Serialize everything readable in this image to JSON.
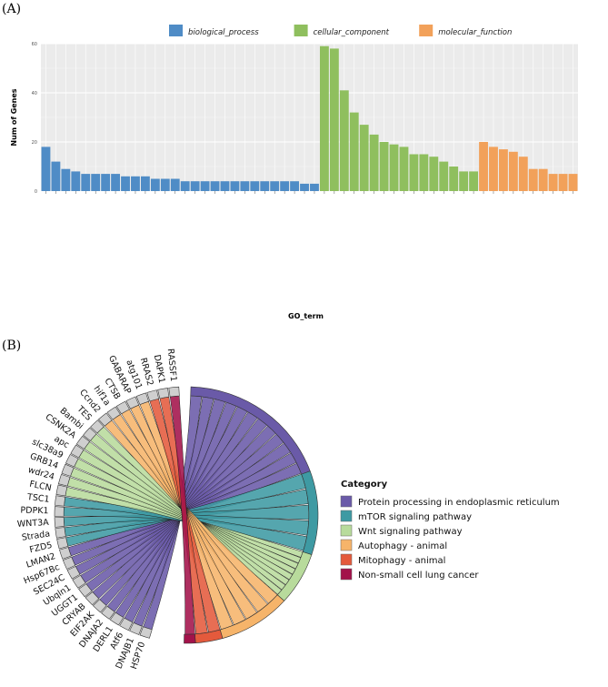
{
  "panel_labels": {
    "a": "(A)",
    "b": "(B)"
  },
  "chart_data": [
    {
      "type": "bar",
      "ylabel": "Num of Genes",
      "xlabel": "GO_term",
      "ylim": [
        0,
        60
      ],
      "y_ticks": [
        0,
        20,
        40,
        60
      ],
      "grid": true,
      "legend_position": "top",
      "colors": {
        "biological_process": "#4f8cc6",
        "cellular_component": "#8fbf5e",
        "molecular_function": "#f2a15a"
      },
      "series": [
        {
          "name": "biological_process",
          "values": [
            18,
            12,
            9,
            8,
            7,
            7,
            7,
            7,
            6,
            6,
            6,
            5,
            5,
            5,
            4,
            4,
            4,
            4,
            4,
            4,
            4,
            4,
            4,
            4,
            4,
            4,
            3,
            3
          ]
        },
        {
          "name": "cellular_component",
          "values": [
            59,
            58,
            41,
            32,
            27,
            23,
            20,
            19,
            18,
            15,
            15,
            14,
            12,
            10,
            8,
            8
          ]
        },
        {
          "name": "molecular_function",
          "values": [
            20,
            18,
            17,
            16,
            14,
            9,
            9,
            7,
            7,
            7
          ]
        }
      ]
    },
    {
      "type": "chord",
      "legend_title": "Category",
      "categories": [
        {
          "name": "Protein processing in endoplasmic reticulum",
          "color": "#6a5aa8"
        },
        {
          "name": "mTOR signaling pathway",
          "color": "#3e9aa3"
        },
        {
          "name": "Wnt signaling pathway",
          "color": "#b8db9c"
        },
        {
          "name": "Autophagy - animal",
          "color": "#f6b46a"
        },
        {
          "name": "Mitophagy - animal",
          "color": "#e45a3c"
        },
        {
          "name": "Non-small cell lung cancer",
          "color": "#a3124a"
        }
      ],
      "genes": [
        "HSP70",
        "DNAJB1",
        "Atf6",
        "DERL1",
        "DNAJA2",
        "EIF2AK",
        "CRYAB",
        "UGGT1",
        "Ubqln1",
        "SEC24C",
        "Hsp67Bc",
        "LMAN2",
        "FZD5",
        "Strada",
        "WNT3A",
        "PDPK1",
        "TSC1",
        "FLCN",
        "wdr24",
        "GRB14",
        "slc38a9",
        "apc",
        "CSNK2A",
        "Bambi",
        "TES",
        "Ccnd2",
        "hif1a",
        "CTSB",
        "GABARAP",
        "atg101",
        "RRAS2",
        "DAPK1",
        "RASSF1"
      ]
    }
  ]
}
